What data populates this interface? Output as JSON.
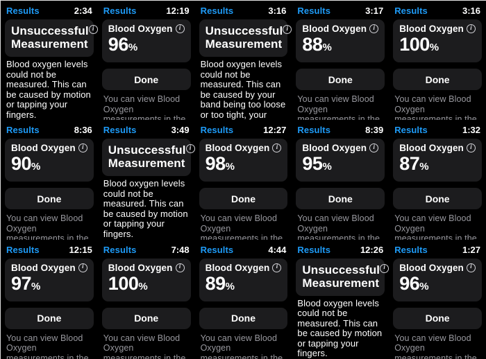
{
  "app_context": "Apple Watch Blood Oxygen results - grid of 15 watch screenshots",
  "colors": {
    "background": "#000000",
    "card": "#1c1c1e",
    "accent_blue": "#1e9bf7",
    "text_primary": "#ffffff",
    "text_secondary": "#98989e"
  },
  "labels": {
    "nav_title": "Results",
    "measurement_title": "Blood Oxygen",
    "unsuccessful_title": "Unsuccessful Measurement",
    "done_button": "Done",
    "percent_unit": "%",
    "footer_note": "You can view Blood Oxygen measurements in the Health app on iPhone",
    "info_icon_glyph": "i"
  },
  "messages": {
    "motion": "Blood oxygen levels could not be measured. This can be caused by motion or tapping your fingers.",
    "band": "Blood oxygen levels could not be measured. This can be caused by your band being too loose or too tight, your watch being low on"
  },
  "tiles": [
    {
      "time": "2:34",
      "type": "unsuccessful",
      "message_key": "motion"
    },
    {
      "time": "12:19",
      "type": "result",
      "value": 96
    },
    {
      "time": "3:16",
      "type": "unsuccessful",
      "message_key": "band"
    },
    {
      "time": "3:17",
      "type": "result",
      "value": 88
    },
    {
      "time": "3:16",
      "type": "result",
      "value": 100
    },
    {
      "time": "8:36",
      "type": "result",
      "value": 90
    },
    {
      "time": "3:49",
      "type": "unsuccessful",
      "message_key": "motion"
    },
    {
      "time": "12:27",
      "type": "result",
      "value": 98
    },
    {
      "time": "8:39",
      "type": "result",
      "value": 95
    },
    {
      "time": "1:32",
      "type": "result",
      "value": 87
    },
    {
      "time": "12:15",
      "type": "result",
      "value": 97
    },
    {
      "time": "7:48",
      "type": "result",
      "value": 100
    },
    {
      "time": "4:44",
      "type": "result",
      "value": 89
    },
    {
      "time": "12:26",
      "type": "unsuccessful",
      "message_key": "motion"
    },
    {
      "time": "1:27",
      "type": "result",
      "value": 96
    }
  ]
}
